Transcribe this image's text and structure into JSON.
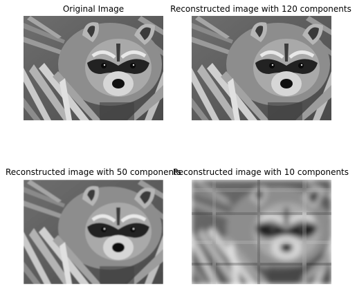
{
  "figure": {
    "panels": [
      {
        "title": "Original Image",
        "detail": "sharp",
        "components": null,
        "image_description": "grayscale photo of a raccoon among palm fronds"
      },
      {
        "title": "Reconstructed image with 120 components",
        "detail": "sharp",
        "components": 120,
        "image_description": "grayscale raccoon reconstruction, nearly identical to original"
      },
      {
        "title": "Reconstructed image with 50 components",
        "detail": "slightly-soft",
        "components": 50,
        "image_description": "grayscale raccoon reconstruction, slightly softer"
      },
      {
        "title": "Reconstructed image with 10 components",
        "detail": "blurry",
        "components": 10,
        "image_description": "very blurry, streaky grayscale raccoon reconstruction"
      }
    ]
  }
}
